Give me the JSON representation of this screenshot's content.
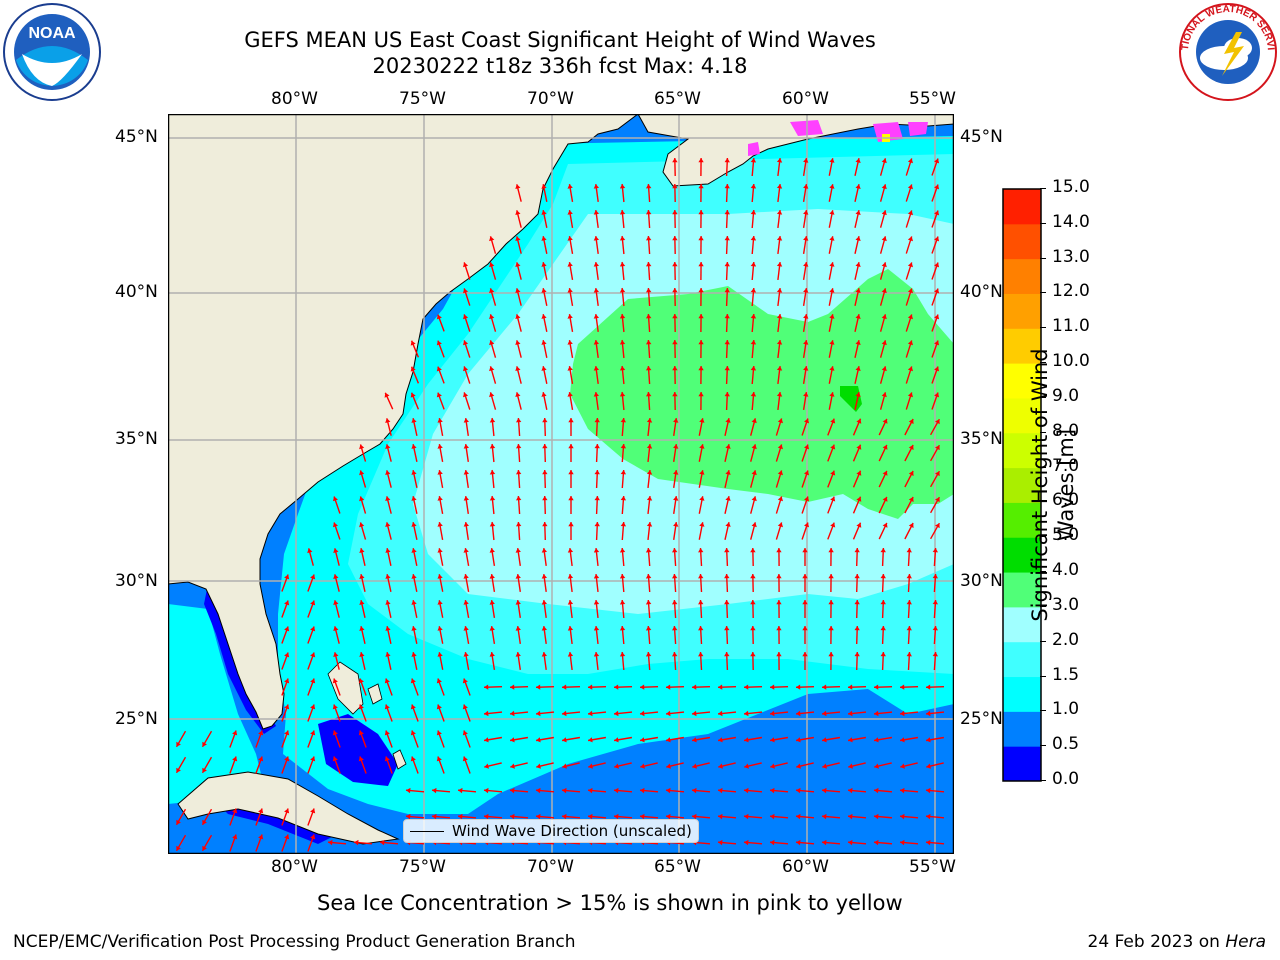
{
  "title": {
    "line1": "GEFS MEAN US East Coast Significant Height of Wind Waves",
    "line2": "20230222 t18z 336h fcst   Max: 4.18"
  },
  "map": {
    "lon_labels": [
      "80°W",
      "75°W",
      "70°W",
      "65°W",
      "60°W",
      "55°W"
    ],
    "lat_labels": [
      "45°N",
      "40°N",
      "35°N",
      "30°N",
      "25°N"
    ],
    "extent": {
      "lon_min": -85,
      "lon_max": -54.5,
      "lat_min": 20.5,
      "lat_max": 46
    },
    "colors": {
      "land": "#efeddb",
      "coast": "#000000",
      "grid": "#b0b0b0",
      "arrow": "#ff0000"
    }
  },
  "legend": {
    "label": "Wind Wave Direction (unscaled)"
  },
  "colorbar": {
    "label": "Significant Height of Wind Waves [m]",
    "label_line1": "Significant Height of Wind",
    "label_line2": "Waves [m]",
    "ticks": [
      "0.0",
      "0.5",
      "1.0",
      "1.5",
      "2.0",
      "3.0",
      "4.0",
      "5.0",
      "6.0",
      "7.0",
      "8.0",
      "9.0",
      "10.0",
      "11.0",
      "12.0",
      "13.0",
      "14.0",
      "15.0"
    ],
    "colors": [
      "#0000ff",
      "#0080ff",
      "#00ffff",
      "#40ffff",
      "#a0ffff",
      "#50ff78",
      "#00dd00",
      "#55ee00",
      "#aaee00",
      "#ccff00",
      "#eeff00",
      "#ffff00",
      "#ffcc00",
      "#ffa000",
      "#ff8000",
      "#ff5000",
      "#ff2000"
    ]
  },
  "caption": "Sea Ice Concentration > 15% is shown in pink to yellow",
  "footer": {
    "left": "NCEP/EMC/Verification Post Processing Product Generation Branch",
    "right_date": "24 Feb 2023 on ",
    "right_machine": "Hera"
  },
  "logos": {
    "noaa_text": "NOAA",
    "nws_text": "NATIONAL WEATHER SERVICE"
  }
}
